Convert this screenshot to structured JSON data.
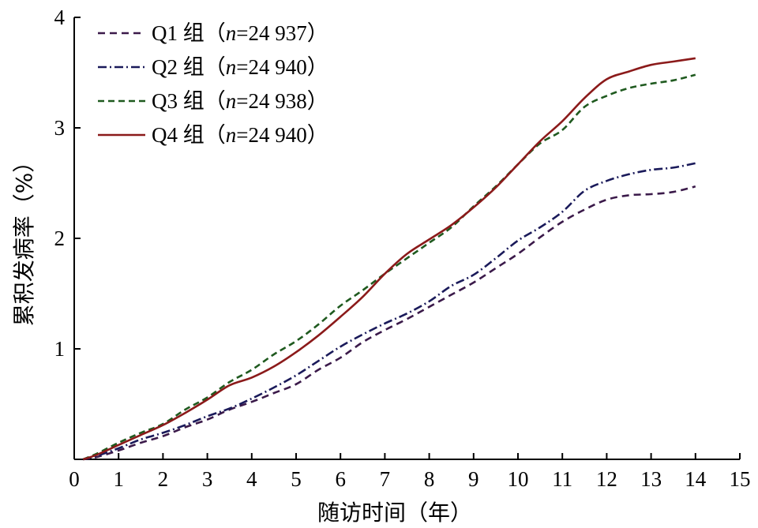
{
  "chart_data": {
    "type": "line",
    "xlabel": "随访时间（年）",
    "ylabel": "累积发病率（%）",
    "xlim": [
      0,
      15
    ],
    "ylim": [
      0,
      4
    ],
    "xticks": [
      "0",
      "1",
      "2",
      "3",
      "4",
      "5",
      "6",
      "7",
      "8",
      "9",
      "10",
      "11",
      "12",
      "13",
      "14",
      "15"
    ],
    "yticks": [
      "1",
      "2",
      "3",
      "4"
    ],
    "legend_position": "top-left",
    "grid": false,
    "series": [
      {
        "name": "Q1 组（",
        "n_label": "n",
        "n_value": "=24 937",
        "close": "）",
        "color": "#3b1a4a",
        "dash": "9,6",
        "x": [
          0.2,
          0.5,
          1,
          1.5,
          2,
          2.5,
          3,
          3.5,
          4,
          4.5,
          5,
          5.5,
          6,
          6.5,
          7,
          7.5,
          8,
          8.5,
          9,
          9.5,
          10,
          10.5,
          11,
          11.5,
          12,
          12.5,
          13,
          13.5,
          14
        ],
        "y": [
          0,
          0.02,
          0.08,
          0.15,
          0.21,
          0.29,
          0.36,
          0.45,
          0.52,
          0.6,
          0.68,
          0.81,
          0.92,
          1.06,
          1.17,
          1.27,
          1.38,
          1.49,
          1.6,
          1.73,
          1.86,
          2.01,
          2.15,
          2.26,
          2.35,
          2.39,
          2.4,
          2.42,
          2.47
        ]
      },
      {
        "name": "Q2 组（",
        "n_label": "n",
        "n_value": "=24 940",
        "close": "）",
        "color": "#1a1a5a",
        "dash": "11,4,2,4",
        "x": [
          0.2,
          0.5,
          1,
          1.5,
          2,
          2.5,
          3,
          3.5,
          4,
          4.5,
          5,
          5.5,
          6,
          6.5,
          7,
          7.5,
          8,
          8.5,
          9,
          9.5,
          10,
          10.5,
          11,
          11.5,
          12,
          12.5,
          13,
          13.5,
          14
        ],
        "y": [
          0,
          0.03,
          0.1,
          0.18,
          0.24,
          0.31,
          0.39,
          0.46,
          0.55,
          0.65,
          0.76,
          0.89,
          1.02,
          1.13,
          1.23,
          1.32,
          1.43,
          1.57,
          1.67,
          1.82,
          1.98,
          2.1,
          2.24,
          2.43,
          2.52,
          2.58,
          2.62,
          2.64,
          2.68
        ]
      },
      {
        "name": "Q3 组（",
        "n_label": "n",
        "n_value": "=24 938",
        "close": "）",
        "color": "#1f5a1f",
        "dash": "8,5",
        "x": [
          0.2,
          0.5,
          1,
          1.5,
          2,
          2.5,
          3,
          3.5,
          4,
          4.5,
          5,
          5.5,
          6,
          6.5,
          7,
          7.5,
          8,
          8.5,
          9,
          9.5,
          10,
          10.5,
          11,
          11.5,
          12,
          12.5,
          13,
          13.5,
          14
        ],
        "y": [
          0,
          0.05,
          0.15,
          0.24,
          0.32,
          0.45,
          0.56,
          0.7,
          0.81,
          0.95,
          1.07,
          1.22,
          1.39,
          1.53,
          1.68,
          1.82,
          1.96,
          2.1,
          2.29,
          2.47,
          2.67,
          2.86,
          2.98,
          3.19,
          3.29,
          3.36,
          3.4,
          3.43,
          3.48
        ]
      },
      {
        "name": "Q4 组（",
        "n_label": "n",
        "n_value": "=24 940",
        "close": "）",
        "color": "#8b1a1a",
        "dash": "",
        "x": [
          0.2,
          0.5,
          1,
          1.5,
          2,
          2.5,
          3,
          3.5,
          4,
          4.5,
          5,
          5.5,
          6,
          6.5,
          7,
          7.5,
          8,
          8.5,
          9,
          9.5,
          10,
          10.5,
          11,
          11.5,
          12,
          12.5,
          13,
          13.5,
          14
        ],
        "y": [
          0,
          0.04,
          0.13,
          0.22,
          0.31,
          0.42,
          0.54,
          0.67,
          0.74,
          0.84,
          0.97,
          1.12,
          1.29,
          1.47,
          1.68,
          1.86,
          1.99,
          2.12,
          2.28,
          2.46,
          2.67,
          2.88,
          3.06,
          3.27,
          3.44,
          3.51,
          3.57,
          3.6,
          3.63
        ]
      }
    ]
  }
}
